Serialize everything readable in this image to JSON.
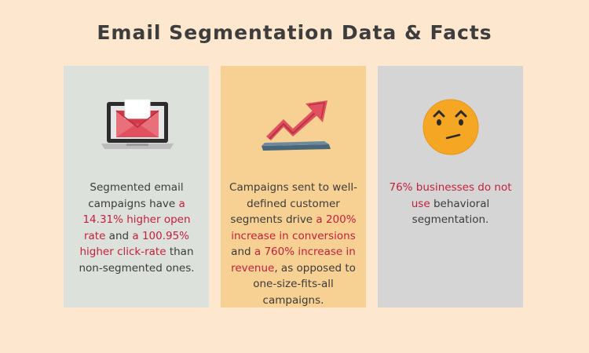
{
  "title": "Email Segmentation Data & Facts",
  "colors": {
    "background": "#fde7cf",
    "title": "#3d3d3d",
    "highlight": "#c51f3a",
    "card_1": "#dde1dc",
    "card_2": "#f7d193",
    "card_3": "#d5d5d5"
  },
  "cards": [
    {
      "icon": "laptop-email-icon",
      "text": {
        "p1": "Segmented email campaigns have ",
        "h1": "a 14.31% higher open rate",
        "p2": " and ",
        "h2": "a 100.95% higher click-rate",
        "p3": " than non-segmented ones."
      }
    },
    {
      "icon": "trend-up-arrow-icon",
      "text": {
        "p1": "Campaigns sent to well-defined customer segments drive ",
        "h1": "a 200% increase in conversions",
        "p2": " and ",
        "h2": "a 760% increase in revenue",
        "p3": ", as opposed to one-size-fits-all campaigns."
      }
    },
    {
      "icon": "confused-face-icon",
      "text": {
        "h1": "76% businesses do not use",
        "p1": " behavioral segmentation."
      }
    }
  ]
}
